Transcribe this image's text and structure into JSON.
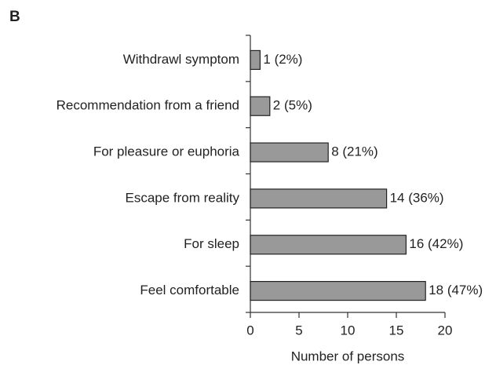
{
  "chart_data": {
    "type": "barh",
    "panel_label": "B",
    "categories": [
      "Withdrawl symptom",
      "Recommendation from a friend",
      "For pleasure or euphoria",
      "Escape from reality",
      "For sleep",
      "Feel comfortable"
    ],
    "values": [
      1,
      2,
      8,
      14,
      16,
      18
    ],
    "value_labels": [
      "1 (2%)",
      "2 (5%)",
      "8 (21%)",
      "14 (36%)",
      "16 (42%)",
      "18 (47%)"
    ],
    "color": "#999999",
    "xlabel": "Number of persons",
    "xlim": [
      0,
      20
    ],
    "xticks": [
      0,
      5,
      10,
      15,
      20
    ],
    "grid": false
  }
}
